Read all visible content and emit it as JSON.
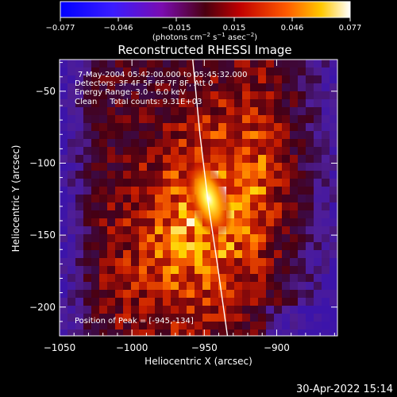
{
  "colorbar": {
    "min_label": "−0.077",
    "max_label": "0.077",
    "ticks": [
      "−0.077",
      "−0.046",
      "−0.015",
      "0.015",
      "0.046",
      "0.077"
    ],
    "unit_pre": "(photons cm",
    "unit_exp1": "−2",
    "unit_mid": " s",
    "unit_exp2": "−1",
    "unit_mid2": " asec",
    "unit_exp3": "−2",
    "unit_post": ")"
  },
  "plot": {
    "title": "Reconstructed RHESSI Image",
    "info_lines": [
      "7-May-2004 05:42:00.000 to 05:45:32.000",
      "Detectors: 3F 4F 5F 6F 7F 8F, Att 0",
      "Energy Range: 3.0 - 6.0 keV",
      "Clean     Total counts: 9.31E+03"
    ],
    "peak_text": "Position of Peak = [-945,-134]",
    "footer_timestamp": "30-Apr-2022 15:14"
  },
  "chart_data": {
    "type": "heatmap",
    "title": "Reconstructed RHESSI Image",
    "xlabel": "Heliocentric X (arcsec)",
    "ylabel": "Heliocentric Y (arcsec)",
    "xlim": [
      -1050,
      -858
    ],
    "ylim": [
      -220,
      -28
    ],
    "x_ticks": [
      -1050,
      -1000,
      -950,
      -900
    ],
    "y_ticks": [
      -50,
      -100,
      -150,
      -200
    ],
    "x_tick_labels": [
      "−1050",
      "−1000",
      "−950",
      "−900"
    ],
    "y_tick_labels": [
      "−50",
      "−100",
      "−150",
      "−200"
    ],
    "colorbar_range": [
      -0.077,
      0.077
    ],
    "colormap": "blue-purple-red-yellow-white",
    "peak": {
      "x": -945,
      "y": -134
    },
    "limb_curve": [
      [
        -958,
        -28
      ],
      [
        -953,
        -80
      ],
      [
        -947,
        -130
      ],
      [
        -941,
        -170
      ],
      [
        -934,
        -220
      ]
    ]
  }
}
